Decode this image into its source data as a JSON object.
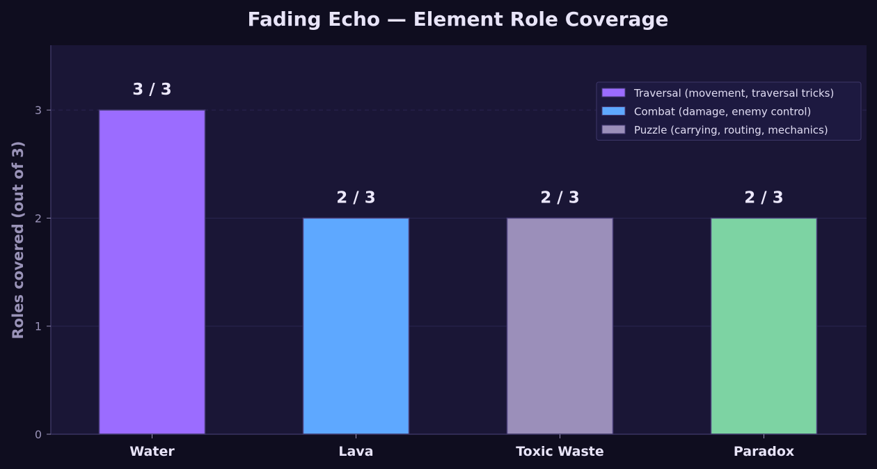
{
  "chart_data": {
    "type": "bar",
    "title": "Fading Echo — Element Role Coverage",
    "xlabel": "",
    "ylabel": "Roles covered (out of 3)",
    "categories": [
      "Water",
      "Lava",
      "Toxic Waste",
      "Paradox"
    ],
    "values": [
      3,
      2,
      2,
      2
    ],
    "bar_labels": [
      "3 / 3",
      "2 / 3",
      "2 / 3",
      "2 / 3"
    ],
    "bar_colors": [
      "#9b6cff",
      "#5ea8ff",
      "#9b8fba",
      "#7dd3a3"
    ],
    "ylim": [
      0,
      3.6
    ],
    "yticks": [
      0,
      1,
      2,
      3
    ],
    "grid": true,
    "reference_line": 3,
    "legend": {
      "placement": "top-right",
      "entries": [
        {
          "label": "Traversal (movement, traversal tricks)",
          "color": "#9b6cff"
        },
        {
          "label": "Combat (damage, enemy control)",
          "color": "#5ea8ff"
        },
        {
          "label": "Puzzle (carrying, routing, mechanics)",
          "color": "#9b8fba"
        }
      ]
    }
  },
  "theme": {
    "page_background": "#0f0d1f",
    "plot_background": "#1a1636",
    "axis_color": "#3a3460",
    "grid_color": "#2a2550"
  }
}
